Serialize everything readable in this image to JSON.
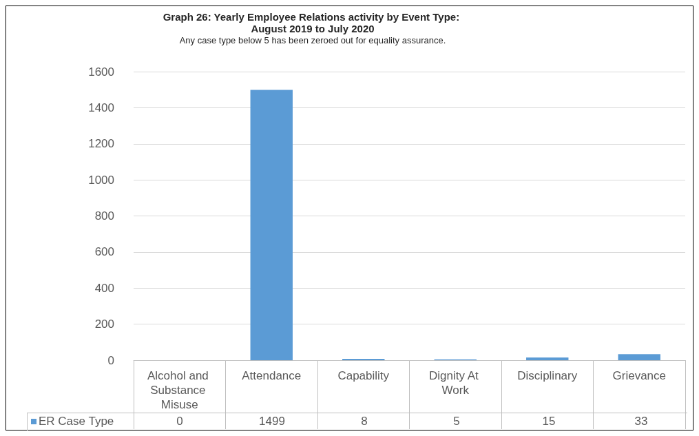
{
  "chart_data": {
    "type": "bar",
    "title": "Graph 26: Yearly Employee Relations activity by Event Type: August 2019 to July 2020",
    "subtitle": "Any case type below 5 has been zeroed out for equality assurance.",
    "categories": [
      "Alcohol and Substance Misuse",
      "Attendance",
      "Capability",
      "Dignity At Work",
      "Disciplinary",
      "Grievance"
    ],
    "series": [
      {
        "name": "ER Case Type",
        "color": "#5b9bd5",
        "values": [
          0,
          1499,
          8,
          5,
          15,
          33
        ]
      }
    ],
    "ylim": [
      0,
      1600
    ],
    "yticks": [
      0,
      200,
      400,
      600,
      800,
      1000,
      1200,
      1400,
      1600
    ],
    "grid": "y",
    "legend": "bottom left",
    "data_labels": true
  }
}
